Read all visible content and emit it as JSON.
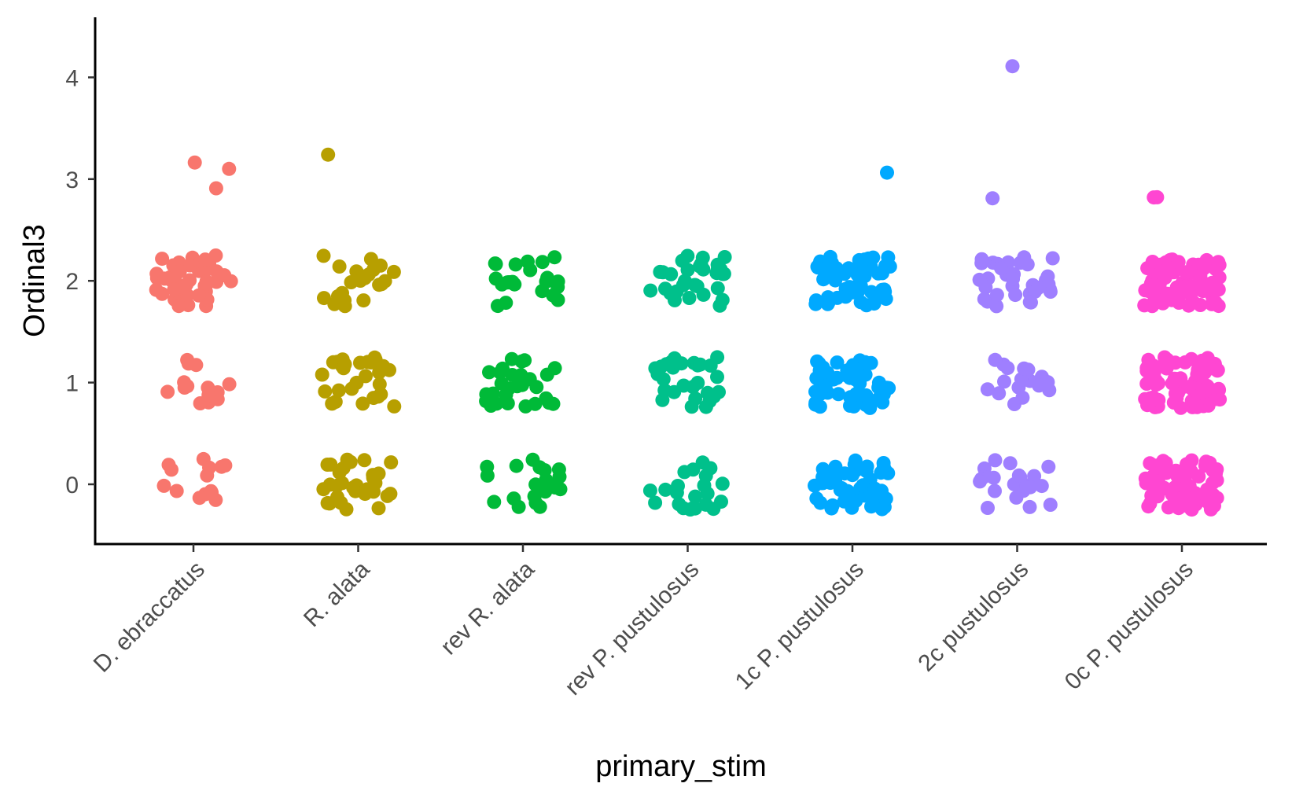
{
  "chart_data": {
    "type": "scatter",
    "title": "",
    "xlabel": "primary_stim",
    "ylabel": "Ordinal3",
    "ylim": [
      -0.58,
      4.58
    ],
    "yticks": [
      0,
      1,
      2,
      3,
      4
    ],
    "ytick_labels": [
      "0",
      "1",
      "2",
      "3",
      "4"
    ],
    "categories": [
      "D. ebraccatus",
      "R. alata",
      "rev R. alata",
      "rev P. pustulosus",
      "1c P. pustulosus",
      "2c pustulosus",
      "0c P. pustulosus"
    ],
    "jitter": 0.25,
    "grid": false,
    "legend": "none",
    "series": [
      {
        "category": "D. ebraccatus",
        "color": "#F8766D",
        "values": [
          0,
          0,
          0,
          0,
          0,
          0,
          0,
          0,
          0,
          0,
          0,
          0,
          0,
          0,
          1,
          1,
          1,
          1,
          1,
          1,
          1,
          1,
          1,
          1,
          1,
          1,
          1,
          1,
          1,
          2,
          2,
          2,
          2,
          2,
          2,
          2,
          2,
          2,
          2,
          2,
          2,
          2,
          2,
          2,
          2,
          2,
          2,
          2,
          2,
          2,
          2,
          2,
          2,
          2,
          2,
          2,
          2,
          2,
          2,
          2,
          2,
          2,
          2,
          2,
          2,
          2,
          2,
          2,
          2,
          2,
          2,
          2,
          2,
          3,
          3,
          3
        ]
      },
      {
        "category": "R. alata",
        "color": "#B79F00",
        "values": [
          0,
          0,
          0,
          0,
          0,
          0,
          0,
          0,
          0,
          0,
          0,
          0,
          0,
          0,
          0,
          0,
          0,
          0,
          0,
          0,
          0,
          0,
          0,
          0,
          0,
          0,
          0,
          0,
          0,
          0,
          0,
          0,
          1,
          1,
          1,
          1,
          1,
          1,
          1,
          1,
          1,
          1,
          1,
          1,
          1,
          1,
          1,
          1,
          1,
          1,
          1,
          1,
          1,
          1,
          1,
          1,
          1,
          1,
          1,
          1,
          2,
          2,
          2,
          2,
          2,
          2,
          2,
          2,
          2,
          2,
          2,
          2,
          2,
          2,
          2,
          2,
          2,
          2,
          2,
          2,
          2,
          2,
          3
        ]
      },
      {
        "category": "rev R. alata",
        "color": "#00BA38",
        "values": [
          0,
          0,
          0,
          0,
          0,
          0,
          0,
          0,
          0,
          0,
          0,
          0,
          0,
          0,
          0,
          0,
          0,
          0,
          0,
          0,
          1,
          1,
          1,
          1,
          1,
          1,
          1,
          1,
          1,
          1,
          1,
          1,
          1,
          1,
          1,
          1,
          1,
          1,
          1,
          1,
          1,
          1,
          1,
          1,
          1,
          1,
          1,
          1,
          1,
          1,
          2,
          2,
          2,
          2,
          2,
          2,
          2,
          2,
          2,
          2,
          2,
          2,
          2,
          2,
          2,
          2,
          2,
          2,
          2,
          2,
          2,
          2
        ]
      },
      {
        "category": "rev P. pustulosus",
        "color": "#00C08B",
        "values": [
          0,
          0,
          0,
          0,
          0,
          0,
          0,
          0,
          0,
          0,
          0,
          0,
          0,
          0,
          0,
          0,
          0,
          0,
          0,
          0,
          0,
          0,
          1,
          1,
          1,
          1,
          1,
          1,
          1,
          1,
          1,
          1,
          1,
          1,
          1,
          1,
          1,
          1,
          1,
          1,
          1,
          1,
          1,
          1,
          1,
          1,
          1,
          1,
          1,
          1,
          2,
          2,
          2,
          2,
          2,
          2,
          2,
          2,
          2,
          2,
          2,
          2,
          2,
          2,
          2,
          2,
          2,
          2,
          2,
          2,
          2,
          2,
          2,
          2,
          2,
          2,
          2,
          2,
          2,
          2,
          2,
          2
        ]
      },
      {
        "category": "1c P. pustulosus",
        "color": "#00A9FF",
        "values": [
          0,
          0,
          0,
          0,
          0,
          0,
          0,
          0,
          0,
          0,
          0,
          0,
          0,
          0,
          0,
          0,
          0,
          0,
          0,
          0,
          0,
          0,
          0,
          0,
          0,
          0,
          0,
          0,
          0,
          0,
          0,
          0,
          0,
          0,
          0,
          0,
          0,
          0,
          0,
          0,
          0,
          0,
          0,
          0,
          0,
          0,
          0,
          0,
          0,
          0,
          1,
          1,
          1,
          1,
          1,
          1,
          1,
          1,
          1,
          1,
          1,
          1,
          1,
          1,
          1,
          1,
          1,
          1,
          1,
          1,
          1,
          1,
          1,
          1,
          1,
          1,
          1,
          1,
          1,
          1,
          1,
          1,
          1,
          1,
          1,
          1,
          1,
          1,
          1,
          1,
          1,
          1,
          1,
          1,
          1,
          1,
          1,
          1,
          1,
          1,
          2,
          2,
          2,
          2,
          2,
          2,
          2,
          2,
          2,
          2,
          2,
          2,
          2,
          2,
          2,
          2,
          2,
          2,
          2,
          2,
          2,
          2,
          2,
          2,
          2,
          2,
          2,
          2,
          2,
          2,
          2,
          2,
          2,
          2,
          2,
          2,
          2,
          2,
          2,
          2,
          2,
          2,
          2,
          2,
          2,
          2,
          2,
          2,
          2,
          2,
          2,
          2,
          2,
          2,
          2,
          3
        ]
      },
      {
        "category": "2c pustulosus",
        "color": "#9F7FFF",
        "values": [
          0,
          0,
          0,
          0,
          0,
          0,
          0,
          0,
          0,
          0,
          0,
          0,
          0,
          0,
          0,
          0,
          0,
          0,
          0,
          0,
          0,
          0,
          1,
          1,
          1,
          1,
          1,
          1,
          1,
          1,
          1,
          1,
          1,
          1,
          1,
          1,
          1,
          1,
          1,
          1,
          2,
          2,
          2,
          2,
          2,
          2,
          2,
          2,
          2,
          2,
          2,
          2,
          2,
          2,
          2,
          2,
          2,
          2,
          2,
          2,
          2,
          2,
          2,
          2,
          2,
          2,
          2,
          2,
          2,
          2,
          2,
          2,
          2,
          2,
          2,
          3,
          4
        ]
      },
      {
        "category": "0c P. pustulosus",
        "color": "#FF46D2",
        "values": [
          0,
          0,
          0,
          0,
          0,
          0,
          0,
          0,
          0,
          0,
          0,
          0,
          0,
          0,
          0,
          0,
          0,
          0,
          0,
          0,
          0,
          0,
          0,
          0,
          0,
          0,
          0,
          0,
          0,
          0,
          0,
          0,
          0,
          0,
          0,
          0,
          0,
          0,
          0,
          0,
          0,
          0,
          0,
          0,
          0,
          0,
          0,
          0,
          0,
          0,
          0,
          0,
          0,
          0,
          0,
          0,
          0,
          0,
          0,
          0,
          0,
          0,
          0,
          0,
          0,
          0,
          0,
          0,
          0,
          0,
          1,
          1,
          1,
          1,
          1,
          1,
          1,
          1,
          1,
          1,
          1,
          1,
          1,
          1,
          1,
          1,
          1,
          1,
          1,
          1,
          1,
          1,
          1,
          1,
          1,
          1,
          1,
          1,
          1,
          1,
          1,
          1,
          1,
          1,
          1,
          1,
          1,
          1,
          1,
          1,
          1,
          1,
          1,
          1,
          1,
          1,
          1,
          1,
          1,
          1,
          1,
          1,
          1,
          1,
          1,
          1,
          1,
          1,
          1,
          1,
          1,
          1,
          1,
          1,
          1,
          1,
          1,
          1,
          1,
          1,
          1,
          1,
          1,
          1,
          1,
          1,
          1,
          1,
          1,
          1,
          2,
          2,
          2,
          2,
          2,
          2,
          2,
          2,
          2,
          2,
          2,
          2,
          2,
          2,
          2,
          2,
          2,
          2,
          2,
          2,
          2,
          2,
          2,
          2,
          2,
          2,
          2,
          2,
          2,
          2,
          2,
          2,
          2,
          2,
          2,
          2,
          2,
          2,
          2,
          2,
          2,
          2,
          2,
          2,
          2,
          2,
          2,
          2,
          2,
          2,
          2,
          2,
          2,
          2,
          2,
          2,
          2,
          2,
          2,
          2,
          2,
          2,
          2,
          2,
          2,
          2,
          2,
          2,
          2,
          2,
          2,
          2,
          2,
          2,
          2,
          2,
          2,
          2,
          2,
          2,
          2,
          2,
          2,
          2,
          2,
          2,
          2,
          2,
          2,
          2,
          3,
          3
        ]
      }
    ]
  }
}
